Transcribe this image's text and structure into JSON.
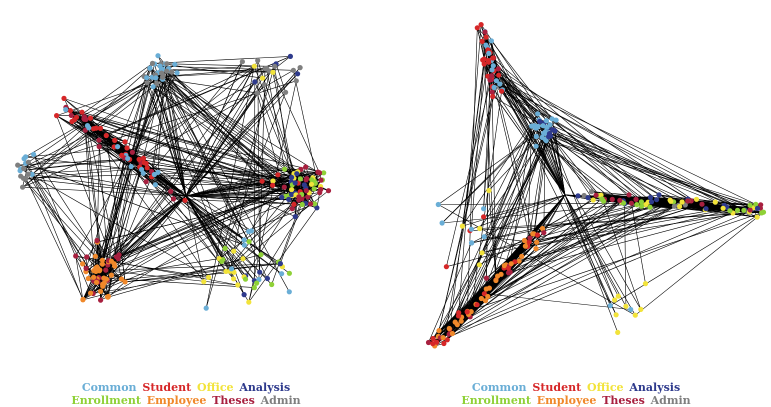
{
  "categories": [
    {
      "key": "common",
      "label": "Common",
      "color": "#6aaed6"
    },
    {
      "key": "student",
      "label": "Student",
      "color": "#d62728"
    },
    {
      "key": "office",
      "label": "Office",
      "color": "#f2e33a"
    },
    {
      "key": "analysis",
      "label": "Analysis",
      "color": "#2e3a8c"
    },
    {
      "key": "enrollment",
      "label": "Enrollment",
      "color": "#8fd137"
    },
    {
      "key": "employee",
      "label": "Employee",
      "color": "#f0882a"
    },
    {
      "key": "theses",
      "label": "Theses",
      "color": "#a8203f"
    },
    {
      "key": "admin",
      "label": "Admin",
      "color": "#7f7f7f"
    }
  ],
  "legend": {
    "row1": [
      "common",
      "student",
      "office",
      "analysis"
    ],
    "row2": [
      "enrollment",
      "employee",
      "theses",
      "admin"
    ]
  },
  "edge_color": "#000000"
}
